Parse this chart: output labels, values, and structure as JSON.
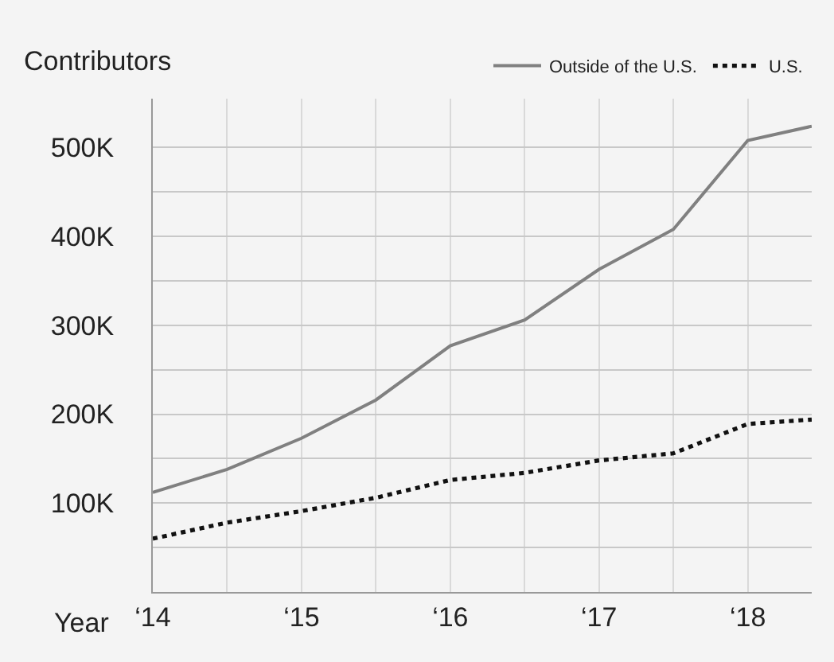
{
  "chart_data": {
    "type": "line",
    "xlabel": "Year",
    "ylabel": "Contributors",
    "x": [
      14,
      14.5,
      15,
      15.5,
      16,
      16.5,
      17,
      17.5,
      18,
      18.43
    ],
    "series": [
      {
        "name": "Outside of the U.S.",
        "color": "#808080",
        "line_style": "solid",
        "values": [
          112000,
          138000,
          173000,
          216000,
          277000,
          306000,
          363000,
          408000,
          508000,
          524000
        ]
      },
      {
        "name": "U.S.",
        "color": "#111111",
        "line_style": "dotted",
        "values": [
          60000,
          78000,
          91000,
          106000,
          126000,
          134000,
          148000,
          156000,
          189000,
          194000
        ]
      }
    ],
    "xlim": [
      14,
      18.43
    ],
    "xticks": [
      {
        "value": 14,
        "label": "‘14"
      },
      {
        "value": 14.5,
        "label": null
      },
      {
        "value": 15,
        "label": "‘15"
      },
      {
        "value": 15.5,
        "label": null
      },
      {
        "value": 16,
        "label": "‘16"
      },
      {
        "value": 16.5,
        "label": null
      },
      {
        "value": 17,
        "label": "‘17"
      },
      {
        "value": 17.5,
        "label": null
      },
      {
        "value": 18,
        "label": "‘18"
      }
    ],
    "ylim": [
      0,
      555000
    ],
    "yticks": [
      {
        "value": 50000,
        "label": null
      },
      {
        "value": 100000,
        "label": "100K"
      },
      {
        "value": 150000,
        "label": null
      },
      {
        "value": 200000,
        "label": "200K"
      },
      {
        "value": 250000,
        "label": null
      },
      {
        "value": 300000,
        "label": "300K"
      },
      {
        "value": 350000,
        "label": null
      },
      {
        "value": 400000,
        "label": "400K"
      },
      {
        "value": 450000,
        "label": null
      },
      {
        "value": 500000,
        "label": "500K"
      }
    ],
    "grid": true,
    "legend": "top right",
    "marker": "none"
  }
}
